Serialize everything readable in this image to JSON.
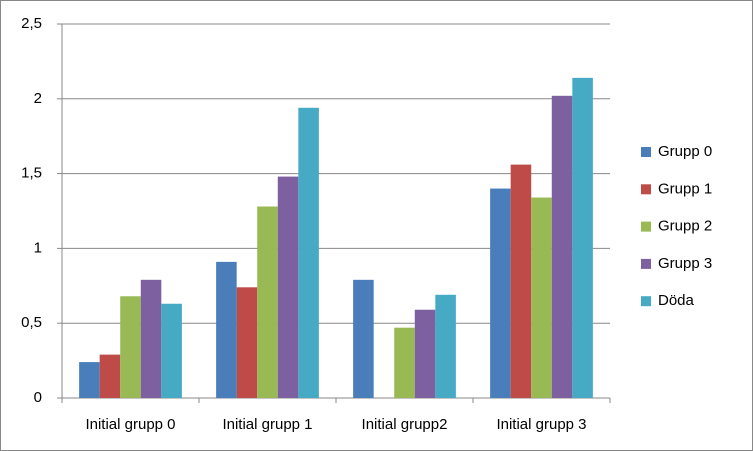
{
  "chart_data": {
    "type": "bar",
    "categories": [
      "Initial grupp 0",
      "Initial grupp 1",
      "Initial grupp2",
      "Initial grupp 3"
    ],
    "series": [
      {
        "name": "Grupp 0",
        "color": "#4a7ebb",
        "values": [
          0.24,
          0.91,
          0.79,
          1.4
        ]
      },
      {
        "name": "Grupp 1",
        "color": "#be4b48",
        "values": [
          0.29,
          0.74,
          null,
          1.56
        ]
      },
      {
        "name": "Grupp 2",
        "color": "#98b954",
        "values": [
          0.68,
          1.28,
          0.47,
          1.34
        ]
      },
      {
        "name": "Grupp 3",
        "color": "#7d60a0",
        "values": [
          0.79,
          1.48,
          0.59,
          2.02
        ]
      },
      {
        "name": "Döda",
        "color": "#46aac5",
        "values": [
          0.63,
          1.94,
          0.69,
          2.14
        ]
      }
    ],
    "ylim": [
      0,
      2.5
    ],
    "yticks": [
      0,
      {
        "value": 0.5,
        "label": "0,5"
      },
      1,
      {
        "value": 1.5,
        "label": "1,5"
      },
      2,
      {
        "value": 2.5,
        "label": "2,5"
      }
    ],
    "grid": true,
    "legend": "right"
  }
}
